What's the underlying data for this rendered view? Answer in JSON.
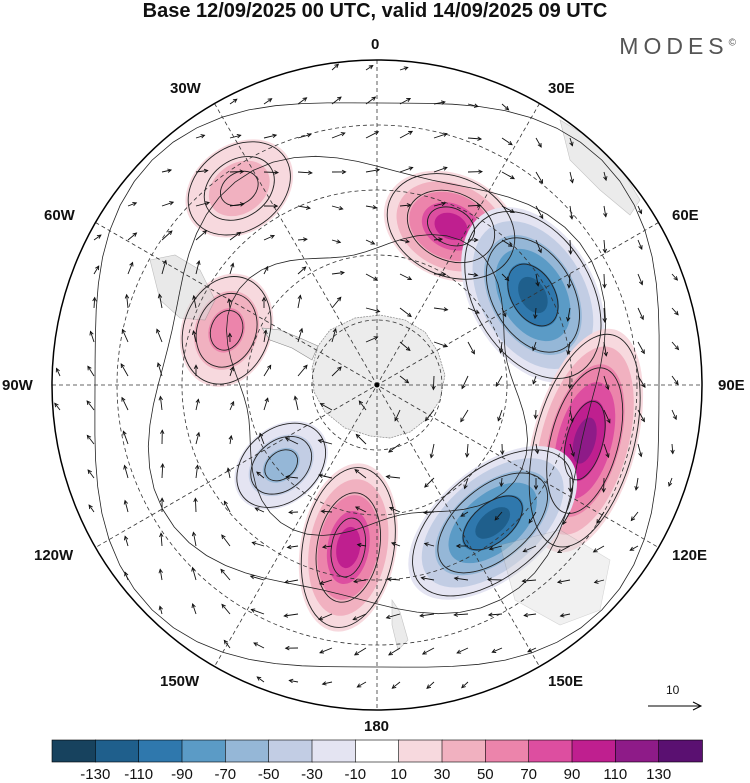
{
  "title": "Base 12/09/2025 00 UTC, valid 14/09/2025 09 UTC",
  "brand": "MODES",
  "brand_mark": "©",
  "longitude_labels": {
    "lon_0": "0",
    "lon_30e": "30E",
    "lon_60e": "60E",
    "lon_90e": "90E",
    "lon_120e": "120E",
    "lon_150e": "150E",
    "lon_180": "180",
    "lon_150w": "150W",
    "lon_120w": "120W",
    "lon_90w": "90W",
    "lon_60w": "60W",
    "lon_30w": "30W"
  },
  "reference_vector": {
    "label": "10"
  },
  "colorbar": {
    "labels": [
      "-130",
      "-110",
      "-90",
      "-70",
      "-50",
      "-30",
      "-10",
      "10",
      "30",
      "50",
      "70",
      "90",
      "110",
      "130"
    ],
    "colors": [
      "#17425e",
      "#1f5f8c",
      "#2f78ad",
      "#5b9bc6",
      "#95b7d7",
      "#c2cde4",
      "#e4e4f2",
      "#ffffff",
      "#f7d9de",
      "#f1b1c0",
      "#ec84ab",
      "#dd4ea0",
      "#bf1f8f",
      "#8e1b88",
      "#5a1071"
    ]
  },
  "anomaly_centers": [
    {
      "label": "positive",
      "lon": 25,
      "value": 110
    },
    {
      "label": "negative",
      "lon": 60,
      "value": -130
    },
    {
      "label": "positive",
      "lon": 105,
      "value": 120
    },
    {
      "label": "negative",
      "lon": 140,
      "value": -130
    },
    {
      "label": "positive",
      "lon": 190,
      "value": 110
    },
    {
      "label": "negative",
      "lon": 230,
      "value": -60
    },
    {
      "label": "positive",
      "lon": 290,
      "value": 70
    },
    {
      "label": "positive",
      "lon": 325,
      "value": 50
    }
  ]
}
